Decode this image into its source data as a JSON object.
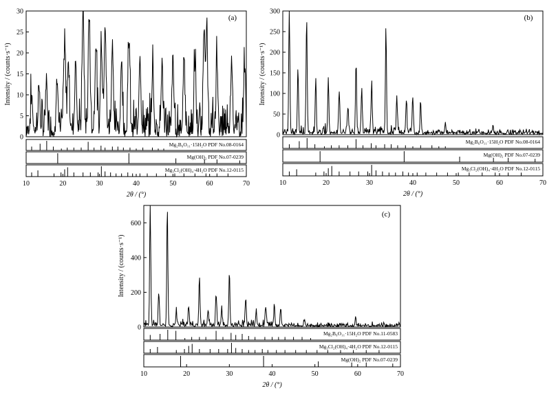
{
  "chart_data": [
    {
      "panel": "(a)",
      "type": "line",
      "xlabel": "2θ / (°)",
      "ylabel": "Intensity / (counts·s⁻¹)",
      "xlim": [
        10,
        70
      ],
      "ylim": [
        0,
        30
      ],
      "xticks": [
        "10",
        "20",
        "30",
        "40",
        "50",
        "60",
        "70"
      ],
      "yticks": [
        "0",
        "5",
        "10",
        "15",
        "20",
        "25",
        "30"
      ],
      "peaks": [
        {
          "x": 11.5,
          "y": 8
        },
        {
          "x": 13.5,
          "y": 9
        },
        {
          "x": 15.5,
          "y": 11
        },
        {
          "x": 18.5,
          "y": 12
        },
        {
          "x": 20.5,
          "y": 20
        },
        {
          "x": 21.5,
          "y": 17
        },
        {
          "x": 23.5,
          "y": 17
        },
        {
          "x": 25.5,
          "y": 30
        },
        {
          "x": 27.2,
          "y": 27
        },
        {
          "x": 29,
          "y": 21
        },
        {
          "x": 30.5,
          "y": 21
        },
        {
          "x": 31.5,
          "y": 26
        },
        {
          "x": 33.5,
          "y": 21
        },
        {
          "x": 36,
          "y": 16
        },
        {
          "x": 38,
          "y": 22
        },
        {
          "x": 41,
          "y": 18
        },
        {
          "x": 44.5,
          "y": 15
        },
        {
          "x": 47,
          "y": 15
        },
        {
          "x": 50,
          "y": 16
        },
        {
          "x": 53,
          "y": 16
        },
        {
          "x": 56,
          "y": 16
        },
        {
          "x": 58.5,
          "y": 25
        },
        {
          "x": 59.2,
          "y": 22
        },
        {
          "x": 62,
          "y": 17
        },
        {
          "x": 66,
          "y": 17
        },
        {
          "x": 69.5,
          "y": 15
        }
      ],
      "references": [
        {
          "label": "Mg₂B₆O₁₁·15H₂O PDF No.08-0164",
          "lines": [
            {
              "x": 11.5,
              "h": 0.4
            },
            {
              "x": 13.8,
              "h": 0.7
            },
            {
              "x": 15.6,
              "h": 1
            },
            {
              "x": 17.4,
              "h": 0.4
            },
            {
              "x": 19.6,
              "h": 0.2
            },
            {
              "x": 21.2,
              "h": 0.3
            },
            {
              "x": 23,
              "h": 0.3
            },
            {
              "x": 25,
              "h": 0.3
            },
            {
              "x": 26.9,
              "h": 0.9
            },
            {
              "x": 28.5,
              "h": 0.3
            },
            {
              "x": 30.4,
              "h": 0.5
            },
            {
              "x": 31.5,
              "h": 0.3
            },
            {
              "x": 33.5,
              "h": 0.4
            },
            {
              "x": 35,
              "h": 0.4
            },
            {
              "x": 36.5,
              "h": 0.3
            },
            {
              "x": 38.3,
              "h": 0.3
            },
            {
              "x": 40,
              "h": 0.2
            },
            {
              "x": 41.8,
              "h": 0.3
            },
            {
              "x": 44.4,
              "h": 0.3
            },
            {
              "x": 46,
              "h": 0.2
            },
            {
              "x": 47.5,
              "h": 0.2
            }
          ]
        },
        {
          "label": "Mg(OH)₂ PDF No.07-0239",
          "lines": [
            {
              "x": 18.6,
              "h": 1
            },
            {
              "x": 38,
              "h": 1
            },
            {
              "x": 50.8,
              "h": 0.5
            },
            {
              "x": 58.6,
              "h": 0.4
            },
            {
              "x": 62,
              "h": 0.4
            },
            {
              "x": 68.2,
              "h": 0.3
            }
          ]
        },
        {
          "label": "Mg₃Cl₂(OH)₄·4H₂O PDF No.12-0115",
          "lines": [
            {
              "x": 11.5,
              "h": 0.4
            },
            {
              "x": 13.2,
              "h": 0.6
            },
            {
              "x": 17.6,
              "h": 0.3
            },
            {
              "x": 19.5,
              "h": 0.4
            },
            {
              "x": 20.5,
              "h": 0.7
            },
            {
              "x": 21.3,
              "h": 0.9
            },
            {
              "x": 23,
              "h": 0.4
            },
            {
              "x": 25.5,
              "h": 0.4
            },
            {
              "x": 27.5,
              "h": 0.4
            },
            {
              "x": 29.6,
              "h": 0.4
            },
            {
              "x": 30.5,
              "h": 1
            },
            {
              "x": 31.5,
              "h": 0.5
            },
            {
              "x": 33,
              "h": 0.4
            },
            {
              "x": 34.5,
              "h": 0.3
            },
            {
              "x": 36,
              "h": 0.3
            },
            {
              "x": 37.7,
              "h": 0.4
            },
            {
              "x": 39,
              "h": 0.3
            },
            {
              "x": 41,
              "h": 0.3
            },
            {
              "x": 43,
              "h": 0.3
            },
            {
              "x": 45.5,
              "h": 0.3
            },
            {
              "x": 48,
              "h": 0.3
            },
            {
              "x": 50.5,
              "h": 0.3
            },
            {
              "x": 53,
              "h": 0.3
            },
            {
              "x": 56,
              "h": 0.3
            },
            {
              "x": 59,
              "h": 0.3
            },
            {
              "x": 62,
              "h": 0.3
            },
            {
              "x": 65,
              "h": 0.3
            }
          ]
        }
      ]
    },
    {
      "panel": "(b)",
      "type": "line",
      "xlabel": "2θ / (°)",
      "ylabel": "Intensity / (counts·s⁻¹)",
      "xlim": [
        10,
        70
      ],
      "ylim": [
        0,
        300
      ],
      "xticks": [
        "10",
        "20",
        "30",
        "40",
        "50",
        "60",
        "70"
      ],
      "yticks": [
        "0",
        "50",
        "100",
        "150",
        "200",
        "250",
        "300"
      ],
      "peaks": [
        {
          "x": 11.5,
          "y": 290
        },
        {
          "x": 13.5,
          "y": 150
        },
        {
          "x": 15.5,
          "y": 280
        },
        {
          "x": 17.6,
          "y": 130
        },
        {
          "x": 20.5,
          "y": 130
        },
        {
          "x": 23,
          "y": 100
        },
        {
          "x": 25,
          "y": 60
        },
        {
          "x": 26.9,
          "y": 170
        },
        {
          "x": 28.2,
          "y": 105
        },
        {
          "x": 30.5,
          "y": 120
        },
        {
          "x": 33.8,
          "y": 245
        },
        {
          "x": 36.3,
          "y": 90
        },
        {
          "x": 38.5,
          "y": 80
        },
        {
          "x": 40,
          "y": 85
        },
        {
          "x": 41.8,
          "y": 75
        },
        {
          "x": 47.5,
          "y": 25
        },
        {
          "x": 58.5,
          "y": 20
        }
      ],
      "references": [
        {
          "label": "Mg₂B₆O₁₁·15H₂O PDF No.08-0164",
          "lines": [
            {
              "x": 11.5,
              "h": 0.4
            },
            {
              "x": 13.8,
              "h": 0.7
            },
            {
              "x": 15.6,
              "h": 1
            },
            {
              "x": 17.4,
              "h": 0.4
            },
            {
              "x": 19.6,
              "h": 0.2
            },
            {
              "x": 21.2,
              "h": 0.3
            },
            {
              "x": 23,
              "h": 0.3
            },
            {
              "x": 25,
              "h": 0.3
            },
            {
              "x": 26.9,
              "h": 0.9
            },
            {
              "x": 28.5,
              "h": 0.3
            },
            {
              "x": 30.4,
              "h": 0.5
            },
            {
              "x": 31.5,
              "h": 0.3
            },
            {
              "x": 33.5,
              "h": 0.4
            },
            {
              "x": 35,
              "h": 0.4
            },
            {
              "x": 36.5,
              "h": 0.3
            },
            {
              "x": 38.3,
              "h": 0.3
            },
            {
              "x": 40,
              "h": 0.2
            },
            {
              "x": 41.8,
              "h": 0.3
            },
            {
              "x": 44.4,
              "h": 0.3
            },
            {
              "x": 46,
              "h": 0.2
            },
            {
              "x": 47.5,
              "h": 0.2
            }
          ]
        },
        {
          "label": "Mg(OH)₂ PDF No.07-0239",
          "lines": [
            {
              "x": 18.6,
              "h": 1
            },
            {
              "x": 38,
              "h": 1
            },
            {
              "x": 50.8,
              "h": 0.5
            },
            {
              "x": 58.6,
              "h": 0.4
            },
            {
              "x": 62,
              "h": 0.4
            },
            {
              "x": 68.2,
              "h": 0.3
            }
          ]
        },
        {
          "label": "Mg₃Cl₂(OH)₄·4H₂O PDF No.12-0115",
          "lines": [
            {
              "x": 11.5,
              "h": 0.4
            },
            {
              "x": 13.2,
              "h": 0.6
            },
            {
              "x": 17.6,
              "h": 0.3
            },
            {
              "x": 19.5,
              "h": 0.4
            },
            {
              "x": 20.5,
              "h": 0.7
            },
            {
              "x": 21.3,
              "h": 0.9
            },
            {
              "x": 23,
              "h": 0.4
            },
            {
              "x": 25.5,
              "h": 0.4
            },
            {
              "x": 27.5,
              "h": 0.4
            },
            {
              "x": 29.6,
              "h": 0.4
            },
            {
              "x": 30.5,
              "h": 1
            },
            {
              "x": 31.5,
              "h": 0.5
            },
            {
              "x": 33,
              "h": 0.4
            },
            {
              "x": 34.5,
              "h": 0.3
            },
            {
              "x": 36,
              "h": 0.3
            },
            {
              "x": 37.7,
              "h": 0.4
            },
            {
              "x": 39,
              "h": 0.3
            },
            {
              "x": 41,
              "h": 0.3
            },
            {
              "x": 43,
              "h": 0.3
            },
            {
              "x": 45.5,
              "h": 0.3
            },
            {
              "x": 48,
              "h": 0.3
            },
            {
              "x": 50.5,
              "h": 0.3
            },
            {
              "x": 53,
              "h": 0.3
            },
            {
              "x": 56,
              "h": 0.3
            },
            {
              "x": 59,
              "h": 0.3
            },
            {
              "x": 62,
              "h": 0.3
            },
            {
              "x": 65,
              "h": 0.3
            }
          ]
        }
      ]
    },
    {
      "panel": "(c)",
      "type": "line",
      "xlabel": "2θ / (°)",
      "ylabel": "Intensity / (counts·s⁻¹)",
      "xlim": [
        10,
        70
      ],
      "ylim": [
        0,
        700
      ],
      "xticks": [
        "10",
        "20",
        "30",
        "40",
        "50",
        "60",
        "70"
      ],
      "yticks": [
        "0",
        "200",
        "400",
        "600"
      ],
      "peaks": [
        {
          "x": 11.5,
          "y": 700
        },
        {
          "x": 13.5,
          "y": 190
        },
        {
          "x": 15.5,
          "y": 680
        },
        {
          "x": 17.6,
          "y": 80
        },
        {
          "x": 20.5,
          "y": 110
        },
        {
          "x": 23,
          "y": 280
        },
        {
          "x": 25,
          "y": 90
        },
        {
          "x": 26.9,
          "y": 190
        },
        {
          "x": 28.2,
          "y": 100
        },
        {
          "x": 30,
          "y": 300
        },
        {
          "x": 33.8,
          "y": 140
        },
        {
          "x": 36.3,
          "y": 70
        },
        {
          "x": 38.5,
          "y": 110
        },
        {
          "x": 40.5,
          "y": 120
        },
        {
          "x": 42,
          "y": 100
        },
        {
          "x": 47.5,
          "y": 30
        },
        {
          "x": 59.5,
          "y": 40
        }
      ],
      "references": [
        {
          "label": "Mg₂B₆O₁₁·15H₂O PDF No.11-0583",
          "lines": [
            {
              "x": 11.5,
              "h": 0.5
            },
            {
              "x": 13.8,
              "h": 0.6
            },
            {
              "x": 15.6,
              "h": 1
            },
            {
              "x": 17.5,
              "h": 0.9
            },
            {
              "x": 19.6,
              "h": 0.2
            },
            {
              "x": 21.2,
              "h": 0.3
            },
            {
              "x": 23,
              "h": 0.3
            },
            {
              "x": 24.5,
              "h": 0.3
            },
            {
              "x": 26.9,
              "h": 0.9
            },
            {
              "x": 28.5,
              "h": 0.3
            },
            {
              "x": 30.4,
              "h": 0.7
            },
            {
              "x": 31.5,
              "h": 0.5
            },
            {
              "x": 33,
              "h": 0.6
            },
            {
              "x": 34.5,
              "h": 0.4
            },
            {
              "x": 36,
              "h": 0.3
            },
            {
              "x": 38.3,
              "h": 0.3
            },
            {
              "x": 40,
              "h": 0.3
            },
            {
              "x": 41.5,
              "h": 0.3
            },
            {
              "x": 43,
              "h": 0.3
            },
            {
              "x": 45,
              "h": 0.3
            },
            {
              "x": 47,
              "h": 0.3
            },
            {
              "x": 49,
              "h": 0.2
            }
          ]
        },
        {
          "label": "Mg₃Cl₂(OH)₄·4H₂O PDF No.12-0115",
          "lines": [
            {
              "x": 11.5,
              "h": 0.4
            },
            {
              "x": 13.2,
              "h": 0.6
            },
            {
              "x": 17.6,
              "h": 0.3
            },
            {
              "x": 19.5,
              "h": 0.4
            },
            {
              "x": 20.5,
              "h": 0.7
            },
            {
              "x": 21.3,
              "h": 0.9
            },
            {
              "x": 23,
              "h": 0.4
            },
            {
              "x": 25.5,
              "h": 0.4
            },
            {
              "x": 27.5,
              "h": 0.4
            },
            {
              "x": 29.6,
              "h": 0.4
            },
            {
              "x": 30.5,
              "h": 1
            },
            {
              "x": 31.5,
              "h": 0.5
            },
            {
              "x": 33,
              "h": 0.4
            },
            {
              "x": 34.5,
              "h": 0.3
            },
            {
              "x": 36,
              "h": 0.3
            },
            {
              "x": 37.7,
              "h": 0.4
            },
            {
              "x": 39,
              "h": 0.3
            },
            {
              "x": 41,
              "h": 0.3
            },
            {
              "x": 43,
              "h": 0.3
            },
            {
              "x": 45.5,
              "h": 0.3
            },
            {
              "x": 48,
              "h": 0.3
            },
            {
              "x": 50.5,
              "h": 0.3
            },
            {
              "x": 53,
              "h": 0.3
            },
            {
              "x": 56,
              "h": 0.3
            },
            {
              "x": 59,
              "h": 0.3
            },
            {
              "x": 62,
              "h": 0.3
            },
            {
              "x": 65,
              "h": 0.3
            }
          ]
        },
        {
          "label": "Mg(OH)₂ PDF No.07-0239",
          "lines": [
            {
              "x": 18.6,
              "h": 1
            },
            {
              "x": 38,
              "h": 1
            },
            {
              "x": 50.8,
              "h": 0.5
            },
            {
              "x": 58.6,
              "h": 0.4
            },
            {
              "x": 62,
              "h": 0.4
            },
            {
              "x": 68.2,
              "h": 0.3
            }
          ]
        }
      ]
    }
  ]
}
